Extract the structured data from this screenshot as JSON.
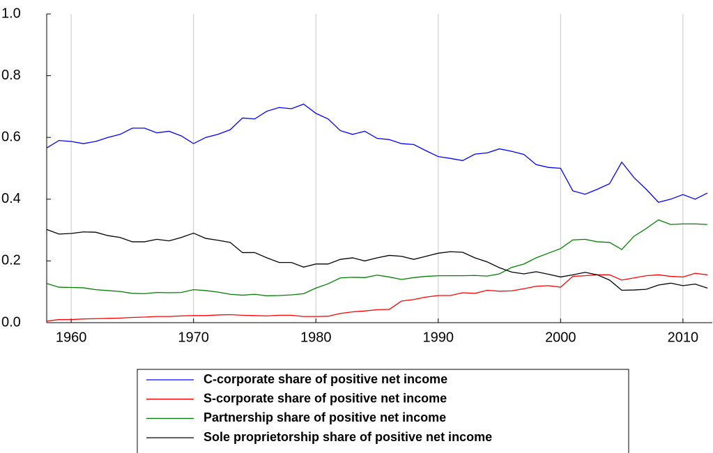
{
  "chart_data": {
    "type": "line",
    "x": [
      1958,
      1959,
      1960,
      1961,
      1962,
      1963,
      1964,
      1965,
      1966,
      1967,
      1968,
      1969,
      1970,
      1971,
      1972,
      1973,
      1974,
      1975,
      1976,
      1977,
      1978,
      1979,
      1980,
      1981,
      1982,
      1983,
      1984,
      1985,
      1986,
      1987,
      1988,
      1989,
      1990,
      1991,
      1992,
      1993,
      1994,
      1995,
      1996,
      1997,
      1998,
      1999,
      2000,
      2001,
      2002,
      2003,
      2004,
      2005,
      2006,
      2007,
      2008,
      2009,
      2010,
      2011,
      2012
    ],
    "xlim": [
      1958,
      2012.4
    ],
    "xticks": [
      1960,
      1970,
      1980,
      1990,
      2000,
      2010
    ],
    "ylim": [
      0,
      1
    ],
    "yticks": [
      {
        "value": 0,
        "label": "0.0"
      },
      0.2,
      0.4,
      0.6,
      0.8,
      {
        "value": 1,
        "label": "1.0"
      }
    ],
    "grid": true,
    "legend": "bottom",
    "series": [
      {
        "name": "C-corporate share of positive net income",
        "color": "#0000ff",
        "values": [
          0.566,
          0.59,
          0.587,
          0.58,
          0.587,
          0.6,
          0.61,
          0.63,
          0.63,
          0.615,
          0.62,
          0.605,
          0.58,
          0.6,
          0.61,
          0.625,
          0.663,
          0.66,
          0.685,
          0.697,
          0.693,
          0.708,
          0.678,
          0.66,
          0.622,
          0.61,
          0.62,
          0.597,
          0.593,
          0.58,
          0.577,
          0.557,
          0.538,
          0.532,
          0.525,
          0.546,
          0.55,
          0.563,
          0.555,
          0.545,
          0.512,
          0.503,
          0.5,
          0.427,
          0.416,
          0.432,
          0.45,
          0.52,
          0.47,
          0.432,
          0.39,
          0.4,
          0.415,
          0.4,
          0.42
        ]
      },
      {
        "name": "S-corporate share of positive net income",
        "color": "#ff0000",
        "values": [
          0.005,
          0.01,
          0.01,
          0.012,
          0.013,
          0.014,
          0.015,
          0.017,
          0.018,
          0.02,
          0.02,
          0.022,
          0.023,
          0.023,
          0.025,
          0.026,
          0.024,
          0.023,
          0.022,
          0.024,
          0.024,
          0.02,
          0.02,
          0.021,
          0.03,
          0.035,
          0.038,
          0.042,
          0.043,
          0.07,
          0.075,
          0.083,
          0.088,
          0.088,
          0.097,
          0.095,
          0.105,
          0.102,
          0.103,
          0.11,
          0.118,
          0.12,
          0.115,
          0.15,
          0.152,
          0.155,
          0.155,
          0.138,
          0.145,
          0.152,
          0.155,
          0.15,
          0.148,
          0.16,
          0.155
        ]
      },
      {
        "name": "Partnership share of positive net income",
        "color": "#008000",
        "values": [
          0.127,
          0.115,
          0.114,
          0.113,
          0.107,
          0.104,
          0.101,
          0.095,
          0.094,
          0.098,
          0.097,
          0.098,
          0.107,
          0.104,
          0.099,
          0.092,
          0.089,
          0.092,
          0.087,
          0.088,
          0.09,
          0.094,
          0.112,
          0.126,
          0.145,
          0.147,
          0.146,
          0.154,
          0.148,
          0.14,
          0.146,
          0.15,
          0.152,
          0.152,
          0.152,
          0.153,
          0.151,
          0.158,
          0.179,
          0.19,
          0.21,
          0.225,
          0.24,
          0.268,
          0.27,
          0.262,
          0.26,
          0.237,
          0.28,
          0.305,
          0.333,
          0.318,
          0.32,
          0.32,
          0.318
        ]
      },
      {
        "name": "Sole proprietorship share of positive net income",
        "color": "#000000",
        "values": [
          0.302,
          0.287,
          0.289,
          0.294,
          0.293,
          0.282,
          0.276,
          0.262,
          0.262,
          0.27,
          0.265,
          0.276,
          0.29,
          0.273,
          0.267,
          0.26,
          0.227,
          0.227,
          0.21,
          0.195,
          0.195,
          0.18,
          0.19,
          0.19,
          0.205,
          0.21,
          0.2,
          0.21,
          0.218,
          0.215,
          0.205,
          0.215,
          0.225,
          0.23,
          0.228,
          0.21,
          0.197,
          0.178,
          0.164,
          0.158,
          0.165,
          0.157,
          0.148,
          0.155,
          0.163,
          0.155,
          0.138,
          0.105,
          0.106,
          0.108,
          0.122,
          0.128,
          0.12,
          0.125,
          0.112
        ]
      }
    ]
  }
}
